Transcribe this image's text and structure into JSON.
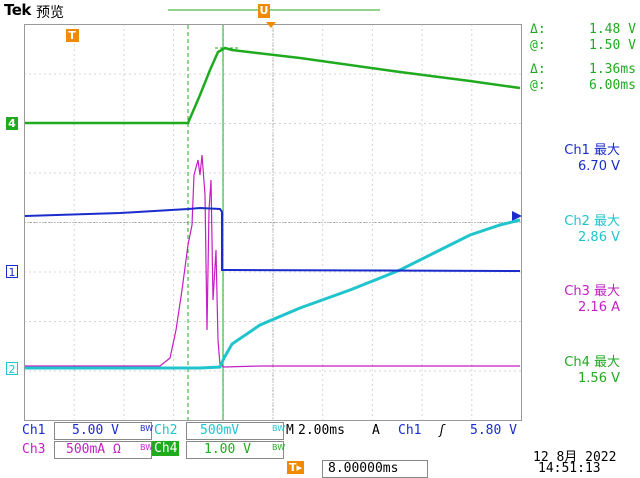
{
  "header": {
    "brand": "Tek",
    "mode": "预览",
    "trigger_marker": "U"
  },
  "cursor_readout": {
    "line1_symbol": "Δ:",
    "line1_value": "1.48 V",
    "line2_symbol": "@:",
    "line2_value": "1.50 V",
    "line3_symbol": "Δ:",
    "line3_value": "1.36ms",
    "line4_symbol": "@:",
    "line4_value": "6.00ms"
  },
  "measurements": [
    {
      "label": "Ch1 最大",
      "value": "6.70 V",
      "color": "#1a2ccc"
    },
    {
      "label": "Ch2 最大",
      "value": "2.86 V",
      "color": "#20c4cc"
    },
    {
      "label": "Ch3 最大",
      "value": "2.16 A",
      "color": "#c41ec4"
    },
    {
      "label": "Ch4 最大",
      "value": "1.56 V",
      "color": "#1faa1f"
    }
  ],
  "channel_markers": {
    "ch4": "4",
    "ch1": "1",
    "ch2": "2",
    "t": "T"
  },
  "bottom": {
    "ch1_label": "Ch1",
    "ch1_scale": "5.00 V",
    "ch1_bw": "BW",
    "ch2_label": "Ch2",
    "ch2_scale": "500mV",
    "ch2_bw": "BW",
    "ch3_label": "Ch3",
    "ch3_scale": "500mA Ω",
    "ch3_bw": "BW",
    "ch4_label": "Ch4",
    "ch4_scale": "1.00 V",
    "ch4_bw": "BW",
    "timebase_prefix": "M",
    "timebase": "2.00ms",
    "trig_mode": "A",
    "trig_source": "Ch1",
    "trig_slope": "ʃ",
    "trig_level": "5.80 V",
    "trig_pos_icon": "T▸",
    "trig_pos": "8.00000ms",
    "date": "12 8月  2022",
    "time": "14:51:13"
  },
  "colors": {
    "ch1": "#1a2ccc",
    "ch2": "#20c4cc",
    "ch3": "#c41ec4",
    "ch4": "#1faa1f",
    "grid": "#888888"
  }
}
